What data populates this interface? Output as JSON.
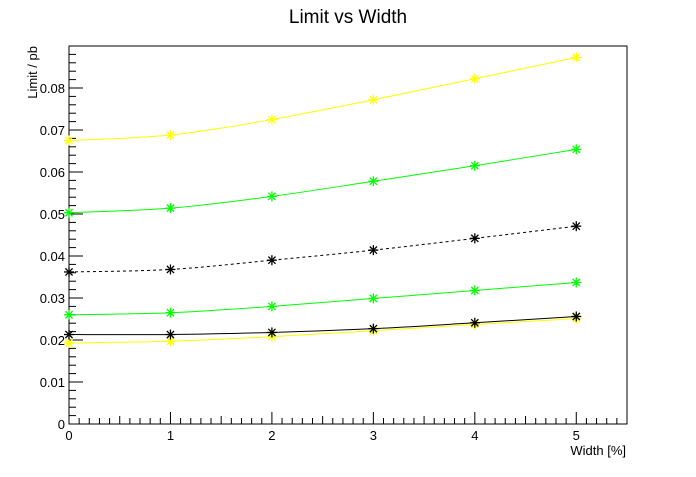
{
  "chart_data": {
    "type": "line",
    "title": "Limit vs Width",
    "xlabel": "Width [%]",
    "ylabel": "Limit / pb",
    "xlim": [
      0,
      5.5
    ],
    "ylim": [
      0,
      0.09
    ],
    "x_ticks": [
      0,
      1,
      2,
      3,
      4,
      5
    ],
    "x_tick_labels": [
      "0",
      "1",
      "2",
      "3",
      "4",
      "5"
    ],
    "y_ticks": [
      0,
      0.01,
      0.02,
      0.03,
      0.04,
      0.05,
      0.06,
      0.07,
      0.08
    ],
    "y_tick_labels": [
      "0",
      "0.01",
      "0.02",
      "0.03",
      "0.04",
      "0.05",
      "0.06",
      "0.07",
      "0.08"
    ],
    "grid": false,
    "legend": "none",
    "x": [
      0,
      1,
      2,
      3,
      4,
      5
    ],
    "series": [
      {
        "values": [
          0.0675,
          0.0688,
          0.0725,
          0.0772,
          0.0822,
          0.0873
        ],
        "color": "#ffff00",
        "line_style": "solid",
        "marker": "star"
      },
      {
        "values": [
          0.0503,
          0.0514,
          0.0542,
          0.0578,
          0.0615,
          0.0654
        ],
        "color": "#00ff00",
        "line_style": "solid",
        "marker": "star"
      },
      {
        "values": [
          0.0362,
          0.0368,
          0.039,
          0.0414,
          0.0442,
          0.0471
        ],
        "color": "#000000",
        "line_style": "dashed",
        "marker": "star"
      },
      {
        "values": [
          0.026,
          0.0265,
          0.028,
          0.0299,
          0.0318,
          0.0337
        ],
        "color": "#00ff00",
        "line_style": "solid",
        "marker": "star"
      },
      {
        "values": [
          0.0193,
          0.0197,
          0.0208,
          0.0222,
          0.0237,
          0.0251
        ],
        "color": "#ffff00",
        "line_style": "solid",
        "marker": "star"
      },
      {
        "values": [
          0.0213,
          0.0213,
          0.0218,
          0.0227,
          0.0241,
          0.0256
        ],
        "color": "#000000",
        "line_style": "solid",
        "marker": "star"
      }
    ]
  }
}
